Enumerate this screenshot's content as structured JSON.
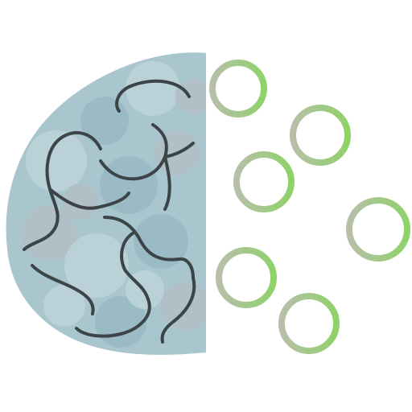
{
  "logo": {
    "brain_fill": "#a9c6cf",
    "brain_fill_light": "#c8dbe0",
    "brain_mottle": "#8fb2bf",
    "brain_gray": "#b7bcc0",
    "fold_stroke": "#3c4448",
    "circuit_gray": "#b7bfa9",
    "circuit_green": "#8fd26a"
  }
}
